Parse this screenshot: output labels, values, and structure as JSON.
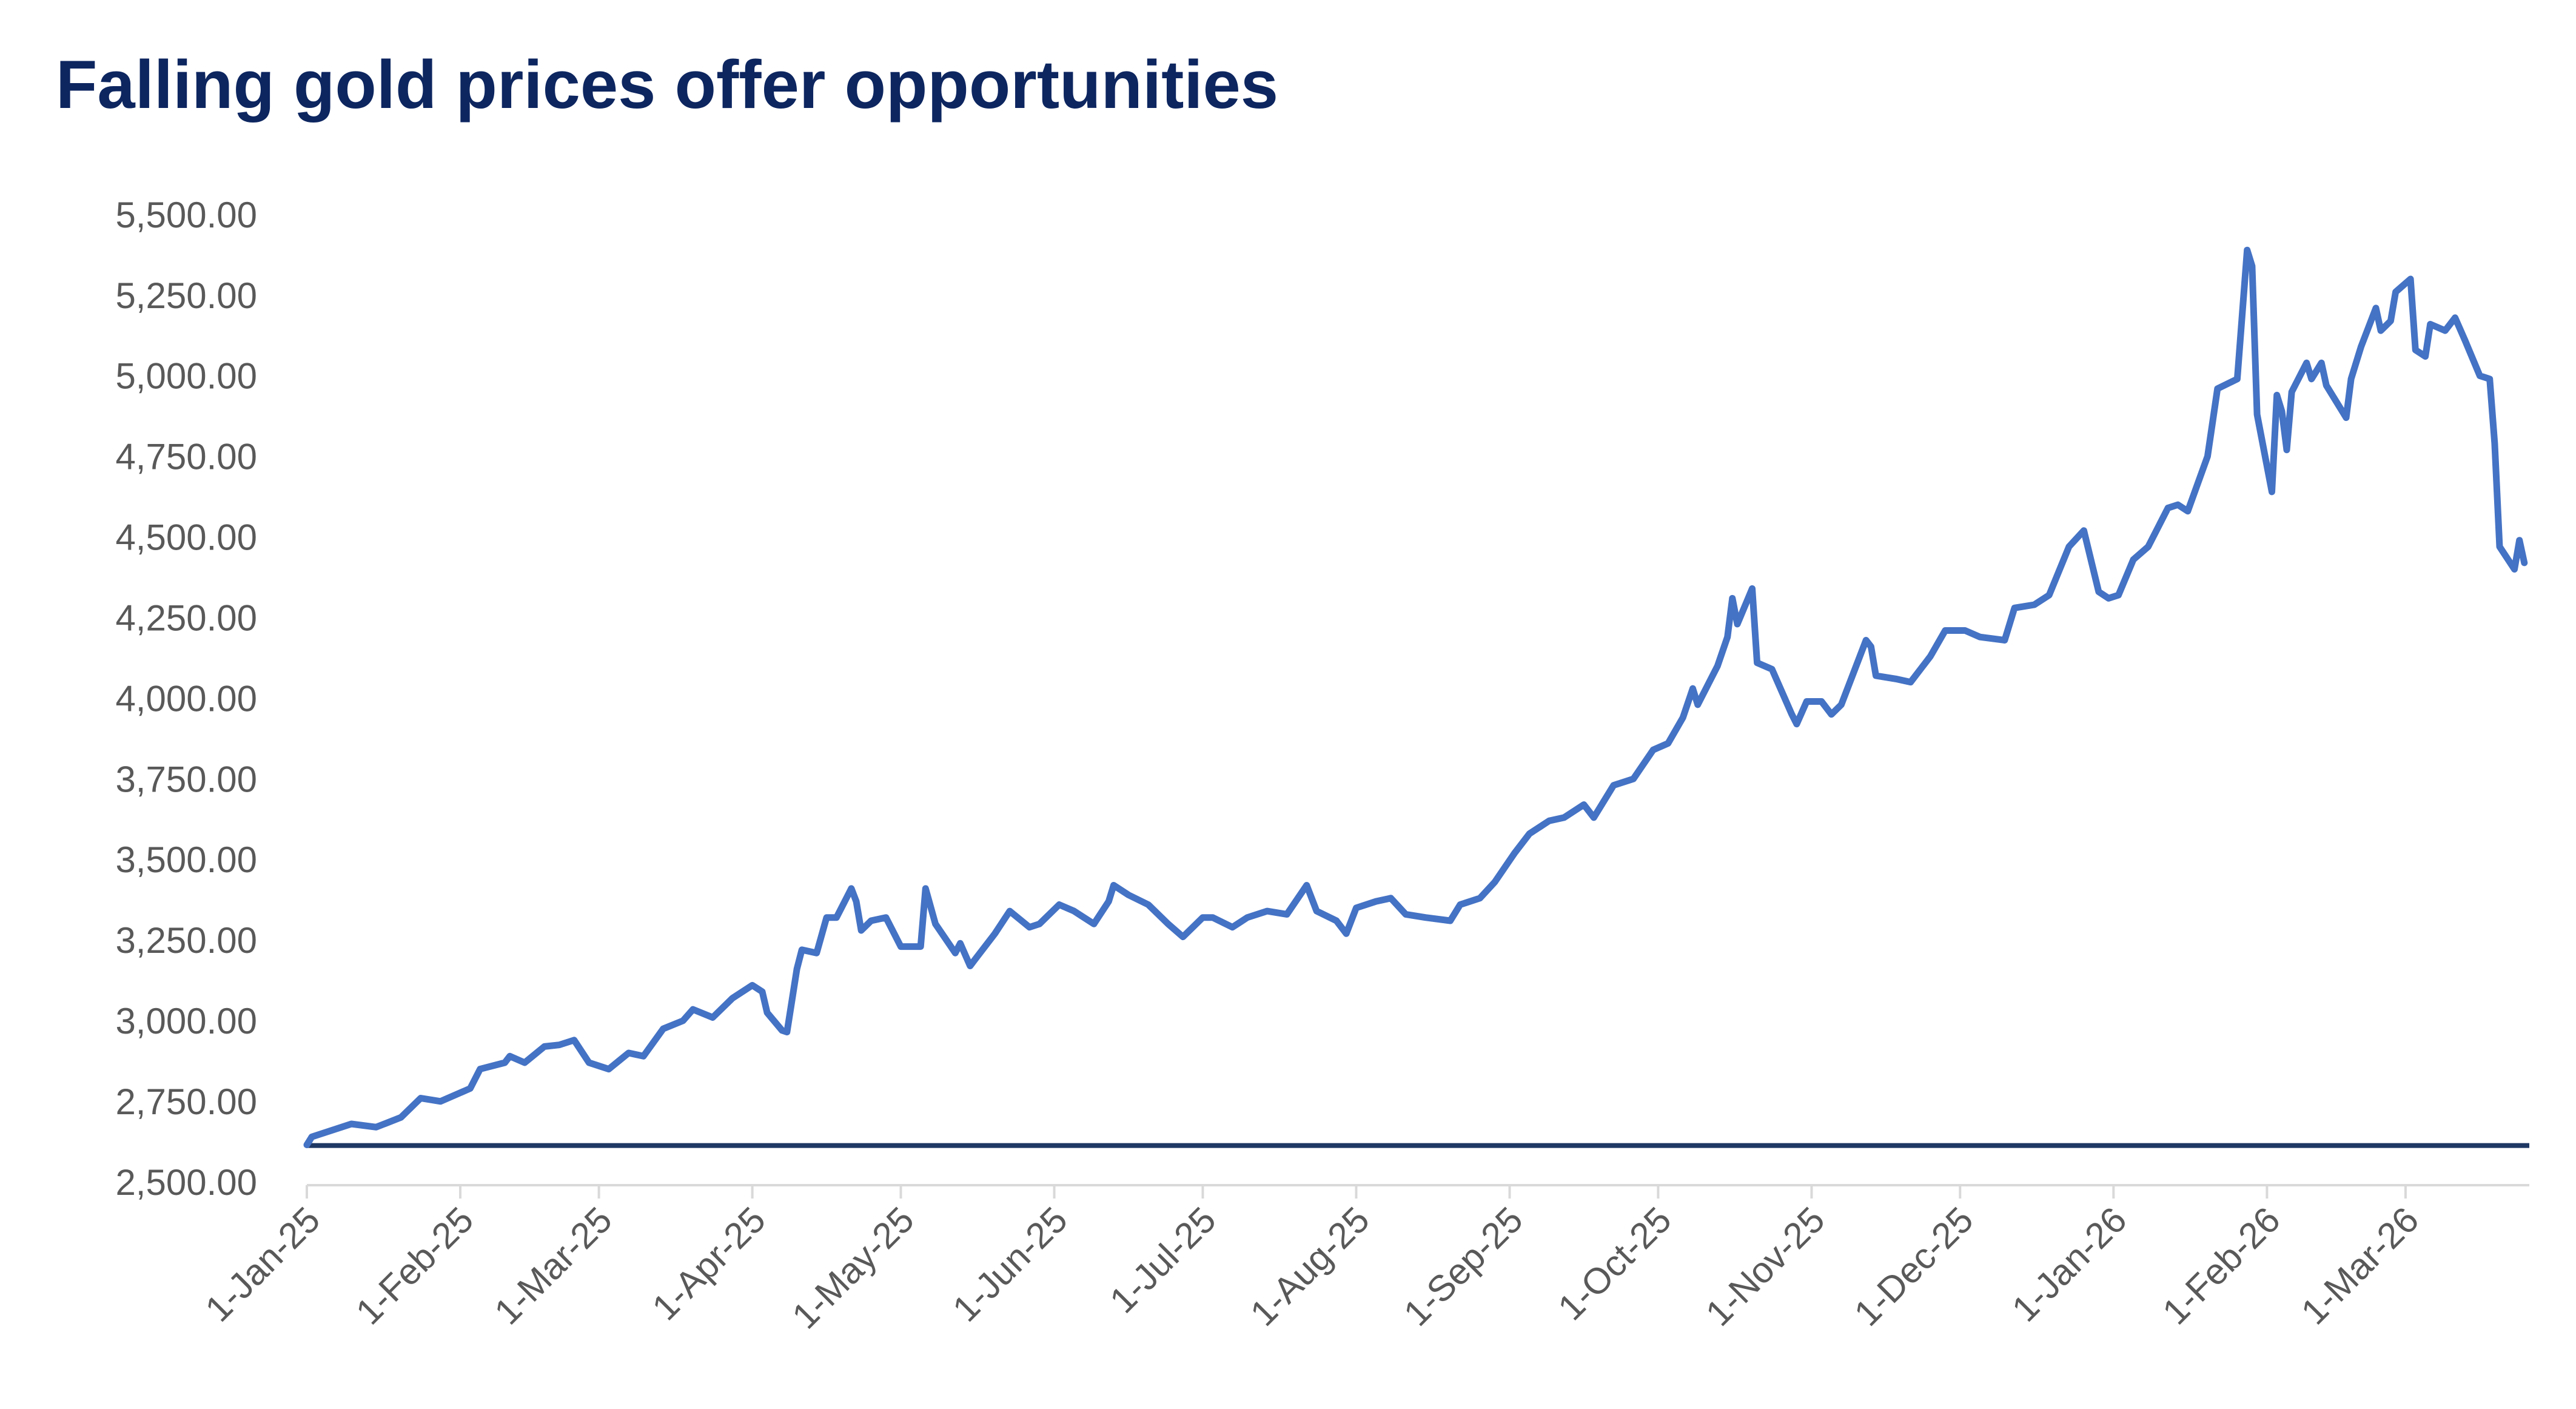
{
  "chart_data": {
    "type": "line",
    "title": "Falling gold prices offer opportunities",
    "x": [
      "2025-01-01",
      "2025-01-02",
      "2025-01-10",
      "2025-01-15",
      "2025-01-20",
      "2025-01-24",
      "2025-01-28",
      "2025-02-03",
      "2025-02-05",
      "2025-02-10",
      "2025-02-11",
      "2025-02-14",
      "2025-02-18",
      "2025-02-21",
      "2025-02-24",
      "2025-02-27",
      "2025-03-03",
      "2025-03-07",
      "2025-03-10",
      "2025-03-14",
      "2025-03-18",
      "2025-03-20",
      "2025-03-24",
      "2025-03-28",
      "2025-04-01",
      "2025-04-03",
      "2025-04-04",
      "2025-04-07",
      "2025-04-08",
      "2025-04-10",
      "2025-04-11",
      "2025-04-14",
      "2025-04-16",
      "2025-04-18",
      "2025-04-21",
      "2025-04-22",
      "2025-04-23",
      "2025-04-25",
      "2025-04-28",
      "2025-05-01",
      "2025-05-05",
      "2025-05-06",
      "2025-05-08",
      "2025-05-12",
      "2025-05-13",
      "2025-05-15",
      "2025-05-16",
      "2025-05-20",
      "2025-05-23",
      "2025-05-27",
      "2025-05-29",
      "2025-06-02",
      "2025-06-05",
      "2025-06-09",
      "2025-06-12",
      "2025-06-13",
      "2025-06-16",
      "2025-06-20",
      "2025-06-24",
      "2025-06-27",
      "2025-07-01",
      "2025-07-03",
      "2025-07-07",
      "2025-07-10",
      "2025-07-14",
      "2025-07-18",
      "2025-07-22",
      "2025-07-24",
      "2025-07-28",
      "2025-07-30",
      "2025-08-01",
      "2025-08-05",
      "2025-08-08",
      "2025-08-11",
      "2025-08-15",
      "2025-08-20",
      "2025-08-22",
      "2025-08-26",
      "2025-08-29",
      "2025-09-02",
      "2025-09-05",
      "2025-09-09",
      "2025-09-12",
      "2025-09-16",
      "2025-09-18",
      "2025-09-22",
      "2025-09-26",
      "2025-09-30",
      "2025-10-03",
      "2025-10-06",
      "2025-10-08",
      "2025-10-09",
      "2025-10-13",
      "2025-10-15",
      "2025-10-16",
      "2025-10-17",
      "2025-10-20",
      "2025-10-21",
      "2025-10-24",
      "2025-10-28",
      "2025-10-29",
      "2025-10-31",
      "2025-11-03",
      "2025-11-05",
      "2025-11-07",
      "2025-11-10",
      "2025-11-12",
      "2025-11-13",
      "2025-11-14",
      "2025-11-18",
      "2025-11-21",
      "2025-11-25",
      "2025-11-28",
      "2025-12-02",
      "2025-12-05",
      "2025-12-10",
      "2025-12-12",
      "2025-12-16",
      "2025-12-19",
      "2025-12-23",
      "2025-12-26",
      "2025-12-29",
      "2025-12-31",
      "2026-01-02",
      "2026-01-05",
      "2026-01-08",
      "2026-01-12",
      "2026-01-14",
      "2026-01-16",
      "2026-01-20",
      "2026-01-22",
      "2026-01-26",
      "2026-01-28",
      "2026-01-29",
      "2026-01-30",
      "2026-02-02",
      "2026-02-03",
      "2026-02-04",
      "2026-02-05",
      "2026-02-06",
      "2026-02-09",
      "2026-02-10",
      "2026-02-12",
      "2026-02-13",
      "2026-02-17",
      "2026-02-18",
      "2026-02-20",
      "2026-02-23",
      "2026-02-24",
      "2026-02-26",
      "2026-02-27",
      "2026-03-02",
      "2026-03-03",
      "2026-03-05",
      "2026-03-06",
      "2026-03-09",
      "2026-03-11",
      "2026-03-13",
      "2026-03-16",
      "2026-03-18",
      "2026-03-19",
      "2026-03-20",
      "2026-03-23",
      "2026-03-24",
      "2026-03-25"
    ],
    "series": [
      {
        "color": "#4472c4",
        "values": [
          2625,
          2650,
          2690,
          2680,
          2710,
          2770,
          2760,
          2800,
          2860,
          2880,
          2900,
          2880,
          2930,
          2935,
          2950,
          2880,
          2860,
          2910,
          2900,
          2985,
          3010,
          3045,
          3020,
          3080,
          3120,
          3100,
          3035,
          2980,
          2975,
          3170,
          3230,
          3220,
          3330,
          3330,
          3420,
          3380,
          3290,
          3320,
          3330,
          3240,
          3240,
          3420,
          3310,
          3220,
          3250,
          3180,
          3200,
          3280,
          3350,
          3300,
          3310,
          3370,
          3350,
          3310,
          3380,
          3430,
          3400,
          3370,
          3310,
          3270,
          3330,
          3330,
          3300,
          3330,
          3350,
          3340,
          3430,
          3350,
          3320,
          3280,
          3360,
          3380,
          3390,
          3340,
          3330,
          3320,
          3370,
          3390,
          3440,
          3530,
          3590,
          3630,
          3640,
          3680,
          3640,
          3740,
          3760,
          3850,
          3870,
          3950,
          4040,
          3990,
          4110,
          4200,
          4320,
          4240,
          4350,
          4120,
          4100,
          3960,
          3930,
          4000,
          4000,
          3960,
          3990,
          4110,
          4190,
          4170,
          4080,
          4070,
          4060,
          4140,
          4220,
          4220,
          4200,
          4190,
          4290,
          4300,
          4330,
          4480,
          4530,
          4340,
          4320,
          4330,
          4440,
          4480,
          4600,
          4610,
          4590,
          4760,
          4970,
          5000,
          5400,
          5350,
          4890,
          4650,
          4950,
          4900,
          4780,
          4960,
          5050,
          5000,
          5050,
          4980,
          4880,
          5000,
          5100,
          5220,
          5150,
          5180,
          5270,
          5310,
          5090,
          5070,
          5170,
          5150,
          5190,
          5120,
          5010,
          5000,
          4800,
          4480,
          4410,
          4500,
          4430
        ]
      }
    ],
    "reference_line": {
      "value": 2623,
      "color": "#1f3864"
    },
    "xlim": [
      "2025-01-01",
      "2026-03-26"
    ],
    "xticks": [
      {
        "value": "2025-01-01",
        "label": "1-Jan-25"
      },
      {
        "value": "2025-02-01",
        "label": "1-Feb-25"
      },
      {
        "value": "2025-03-01",
        "label": "1-Mar-25"
      },
      {
        "value": "2025-04-01",
        "label": "1-Apr-25"
      },
      {
        "value": "2025-05-01",
        "label": "1-May-25"
      },
      {
        "value": "2025-06-01",
        "label": "1-Jun-25"
      },
      {
        "value": "2025-07-01",
        "label": "1-Jul-25"
      },
      {
        "value": "2025-08-01",
        "label": "1-Aug-25"
      },
      {
        "value": "2025-09-01",
        "label": "1-Sep-25"
      },
      {
        "value": "2025-10-01",
        "label": "1-Oct-25"
      },
      {
        "value": "2025-11-01",
        "label": "1-Nov-25"
      },
      {
        "value": "2025-12-01",
        "label": "1-Dec-25"
      },
      {
        "value": "2026-01-01",
        "label": "1-Jan-26"
      },
      {
        "value": "2026-02-01",
        "label": "1-Feb-26"
      },
      {
        "value": "2026-03-01",
        "label": "1-Mar-26"
      }
    ],
    "ylim": [
      2500,
      5500
    ],
    "yticks": [
      {
        "value": 2500,
        "label": "2,500.00"
      },
      {
        "value": 2750,
        "label": "2,750.00"
      },
      {
        "value": 3000,
        "label": "3,000.00"
      },
      {
        "value": 3250,
        "label": "3,250.00"
      },
      {
        "value": 3500,
        "label": "3,500.00"
      },
      {
        "value": 3750,
        "label": "3,750.00"
      },
      {
        "value": 4000,
        "label": "4,000.00"
      },
      {
        "value": 4250,
        "label": "4,250.00"
      },
      {
        "value": 4500,
        "label": "4,500.00"
      },
      {
        "value": 4750,
        "label": "4,750.00"
      },
      {
        "value": 5000,
        "label": "5,000.00"
      },
      {
        "value": 5250,
        "label": "5,250.00"
      },
      {
        "value": 5500,
        "label": "5,500.00"
      }
    ],
    "grid": false
  }
}
